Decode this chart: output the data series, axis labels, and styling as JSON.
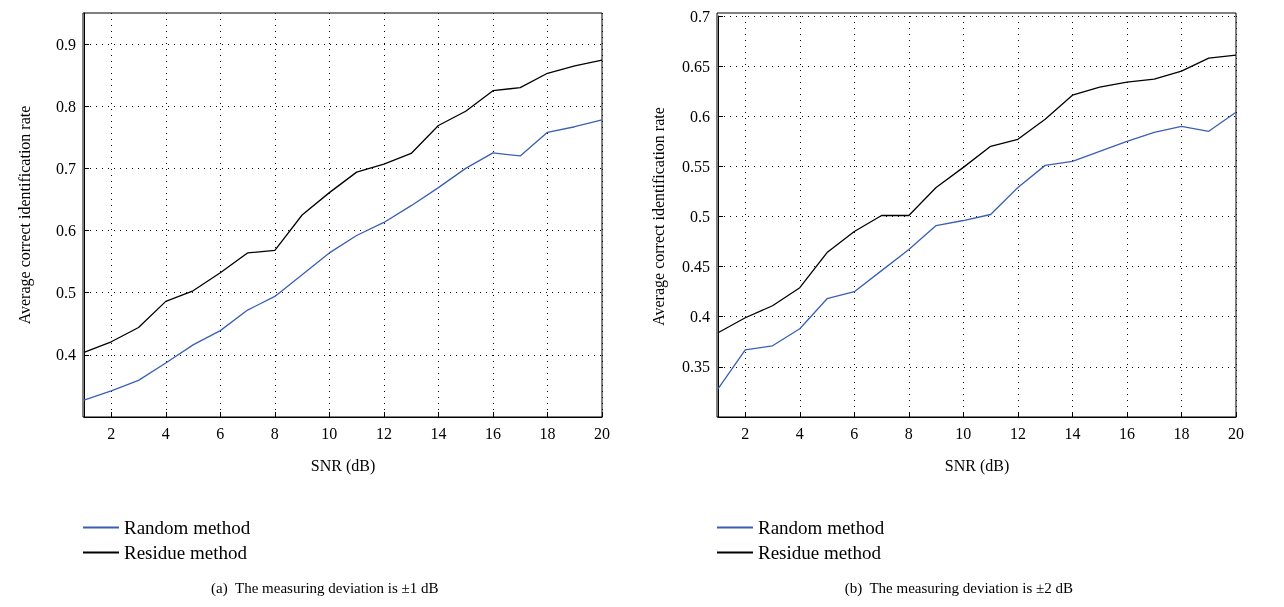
{
  "chart_data": [
    {
      "type": "line",
      "xlabel": "SNR (dB)",
      "ylabel": "Average correct identification rate",
      "x": [
        1,
        2,
        3,
        4,
        5,
        6,
        7,
        8,
        9,
        10,
        11,
        12,
        13,
        14,
        15,
        16,
        17,
        18,
        19,
        20
      ],
      "xlim": [
        1,
        20
      ],
      "xticks": [
        2,
        4,
        6,
        8,
        10,
        12,
        14,
        16,
        18,
        20
      ],
      "ylim": [
        0.3,
        0.95
      ],
      "yticks": [
        0.4,
        0.5,
        0.6,
        0.7,
        0.8,
        0.9
      ],
      "grid": true,
      "legend": "bottom left",
      "line_style": "solid",
      "marker": "none",
      "series": [
        {
          "name": "Random method",
          "color": "#3a5fb5",
          "values": [
            0.327,
            0.342,
            0.359,
            0.387,
            0.416,
            0.439,
            0.472,
            0.494,
            0.529,
            0.564,
            0.592,
            0.613,
            0.64,
            0.669,
            0.7,
            0.725,
            0.72,
            0.758,
            0.767,
            0.778
          ]
        },
        {
          "name": "Residue method",
          "color": "#000000",
          "values": [
            0.404,
            0.421,
            0.444,
            0.486,
            0.503,
            0.532,
            0.564,
            0.568,
            0.625,
            0.661,
            0.694,
            0.707,
            0.724,
            0.769,
            0.792,
            0.825,
            0.83,
            0.853,
            0.865,
            0.874
          ]
        }
      ],
      "annotations": [
        "(a)  The measuring deviation is ±1 dB"
      ]
    },
    {
      "type": "line",
      "xlabel": "SNR (dB)",
      "ylabel": "Average correct identification rate",
      "x": [
        1,
        2,
        3,
        4,
        5,
        6,
        7,
        8,
        9,
        10,
        11,
        12,
        13,
        14,
        15,
        16,
        17,
        18,
        19,
        20
      ],
      "xlim": [
        1,
        20
      ],
      "xticks": [
        2,
        4,
        6,
        8,
        10,
        12,
        14,
        16,
        18,
        20
      ],
      "ylim": [
        0.3,
        0.7
      ],
      "yticks": [
        0.35,
        0.4,
        0.45,
        0.5,
        0.55,
        0.6,
        0.65,
        0.7
      ],
      "grid": true,
      "legend": "bottom left",
      "line_style": "solid",
      "marker": "none",
      "series": [
        {
          "name": "Random method",
          "color": "#3a5fb5",
          "values": [
            0.328,
            0.367,
            0.371,
            0.388,
            0.418,
            0.425,
            0.446,
            0.467,
            0.491,
            0.496,
            0.502,
            0.529,
            0.551,
            0.555,
            0.565,
            0.575,
            0.584,
            0.59,
            0.585,
            0.604
          ]
        },
        {
          "name": "Residue method",
          "color": "#000000",
          "values": [
            0.384,
            0.399,
            0.411,
            0.429,
            0.464,
            0.485,
            0.501,
            0.501,
            0.529,
            0.549,
            0.57,
            0.577,
            0.597,
            0.621,
            0.629,
            0.634,
            0.637,
            0.645,
            0.658,
            0.661
          ]
        }
      ],
      "annotations": [
        "(b)  The measuring deviation is ±2 dB"
      ]
    }
  ]
}
